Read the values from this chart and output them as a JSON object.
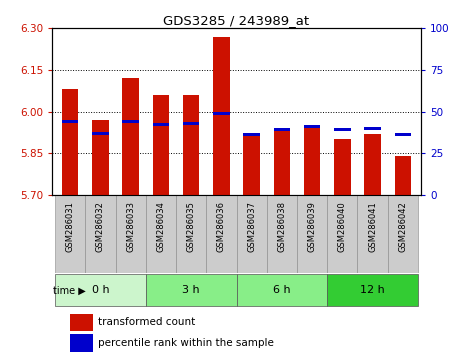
{
  "title": "GDS3285 / 243989_at",
  "samples": [
    "GSM286031",
    "GSM286032",
    "GSM286033",
    "GSM286034",
    "GSM286035",
    "GSM286036",
    "GSM286037",
    "GSM286038",
    "GSM286039",
    "GSM286040",
    "GSM286041",
    "GSM286042"
  ],
  "transformed_count": [
    6.08,
    5.97,
    6.12,
    6.06,
    6.06,
    6.27,
    5.92,
    5.94,
    5.95,
    5.9,
    5.92,
    5.84
  ],
  "percentile_rank": [
    44,
    37,
    44,
    42,
    43,
    49,
    36,
    39,
    41,
    39,
    40,
    36
  ],
  "y_min": 5.7,
  "y_max": 6.3,
  "y_ticks": [
    5.7,
    5.85,
    6.0,
    6.15,
    6.3
  ],
  "right_y_ticks": [
    0,
    25,
    50,
    75,
    100
  ],
  "bar_color": "#cc1100",
  "percentile_color": "#0000cc",
  "time_group_colors": [
    "#ccf5cc",
    "#88ee88",
    "#88ee88",
    "#33cc33"
  ],
  "time_group_labels": [
    "0 h",
    "3 h",
    "6 h",
    "12 h"
  ],
  "time_group_starts": [
    0,
    3,
    6,
    9
  ],
  "time_group_ends": [
    3,
    6,
    9,
    12
  ],
  "legend_labels": [
    "transformed count",
    "percentile rank within the sample"
  ],
  "bar_color_legend": "#cc1100",
  "percentile_color_legend": "#0000cc",
  "tick_color_left": "#cc1100",
  "tick_color_right": "#0000cc",
  "xtick_bg_color": "#cccccc",
  "time_label": "time"
}
